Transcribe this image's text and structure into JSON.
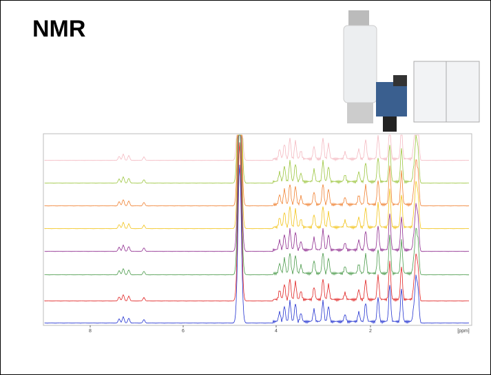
{
  "title": "NMR",
  "spectrum": {
    "axis_ticks": [
      "8",
      "6",
      "4",
      "2"
    ],
    "axis_unit": "[ppm]"
  }
}
